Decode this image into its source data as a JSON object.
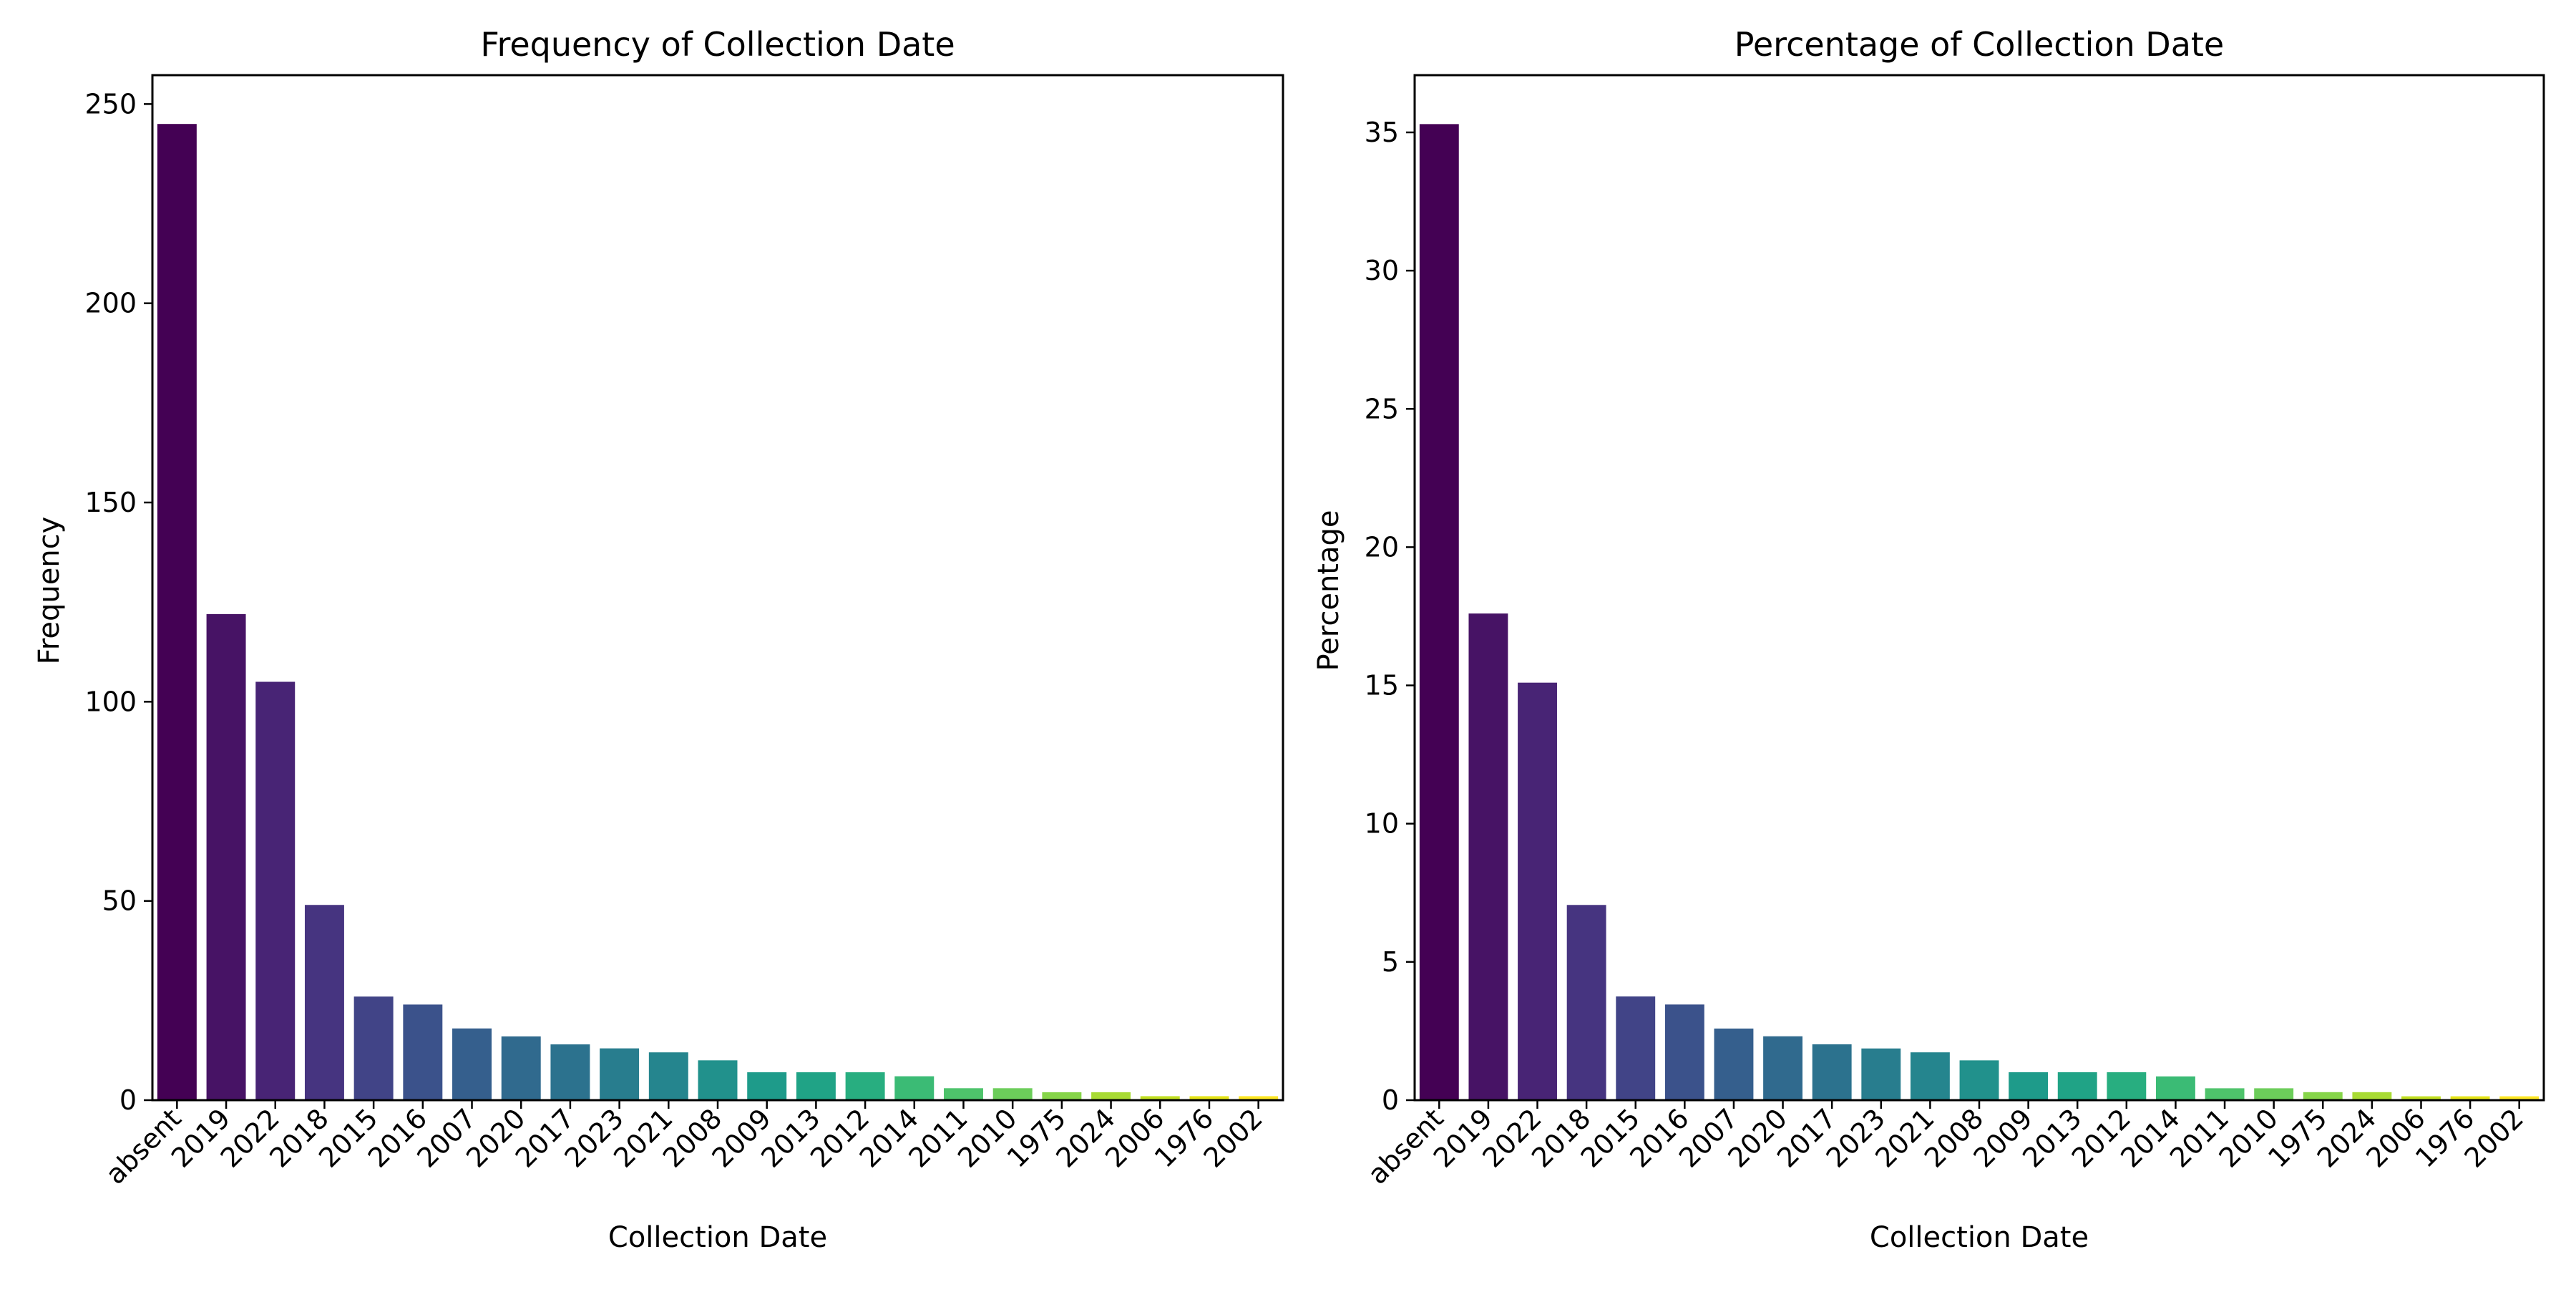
{
  "chart_data": [
    {
      "type": "bar",
      "title": "Frequency of Collection Date",
      "xlabel": "Collection Date",
      "ylabel": "Frequency",
      "categories": [
        "absent",
        "2019",
        "2022",
        "2018",
        "2015",
        "2016",
        "2007",
        "2020",
        "2017",
        "2023",
        "2021",
        "2008",
        "2009",
        "2013",
        "2012",
        "2014",
        "2011",
        "2010",
        "1975",
        "2024",
        "2006",
        "1976",
        "2002"
      ],
      "values": [
        245,
        122,
        105,
        49,
        26,
        24,
        18,
        16,
        14,
        13,
        12,
        10,
        7,
        7,
        7,
        6,
        3,
        3,
        2,
        2,
        1,
        1,
        1
      ],
      "ylim": [
        0,
        257.25
      ],
      "yticks": [
        0,
        50,
        100,
        150,
        200,
        250
      ],
      "grid": false,
      "colormap": "viridis"
    },
    {
      "type": "bar",
      "title": "Percentage of Collection Date",
      "xlabel": "Collection Date",
      "ylabel": "Percentage",
      "categories": [
        "absent",
        "2019",
        "2022",
        "2018",
        "2015",
        "2016",
        "2007",
        "2020",
        "2017",
        "2023",
        "2021",
        "2008",
        "2009",
        "2013",
        "2012",
        "2014",
        "2011",
        "2010",
        "1975",
        "2024",
        "2006",
        "1976",
        "2002"
      ],
      "values": [
        35.3,
        17.6,
        15.1,
        7.06,
        3.75,
        3.46,
        2.59,
        2.31,
        2.02,
        1.87,
        1.73,
        1.44,
        1.01,
        1.01,
        1.01,
        0.86,
        0.43,
        0.43,
        0.29,
        0.29,
        0.14,
        0.14,
        0.14
      ],
      "ylim": [
        0,
        37.07
      ],
      "yticks": [
        0,
        5,
        10,
        15,
        20,
        25,
        30,
        35
      ],
      "grid": false,
      "colormap": "viridis"
    }
  ],
  "colors": {
    "palette": [
      "#440154",
      "#471365",
      "#482475",
      "#463480",
      "#414487",
      "#3b528b",
      "#355f8d",
      "#306a8e",
      "#2c728e",
      "#287d8e",
      "#25858e",
      "#21918c",
      "#1e9b8a",
      "#20a386",
      "#28ae80",
      "#3bbb75",
      "#4ec36b",
      "#6ccd5a",
      "#86d549",
      "#a8db34",
      "#c2df23",
      "#e5e419",
      "#fde725"
    ],
    "axis": "#000000",
    "background": "#ffffff"
  }
}
